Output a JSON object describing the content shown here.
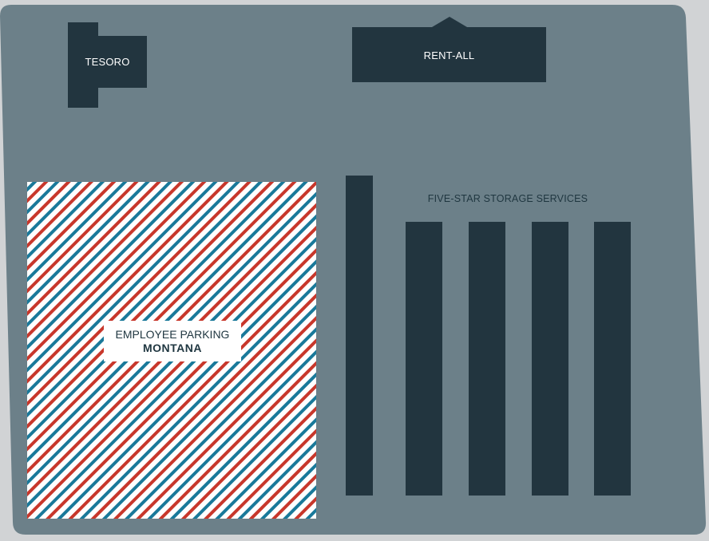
{
  "map": {
    "tesoro": "TESORO",
    "rent_all": "RENT-ALL",
    "five_star": "FIVE-STAR STORAGE SERVICES",
    "parking": {
      "title": "EMPLOYEE PARKING",
      "name": "MONTANA"
    }
  },
  "colors": {
    "background": "#d1d3d5",
    "lot": "#6c8089",
    "building": "#22353f",
    "stripe_red": "#c8372b",
    "stripe_blue": "#19799a"
  }
}
